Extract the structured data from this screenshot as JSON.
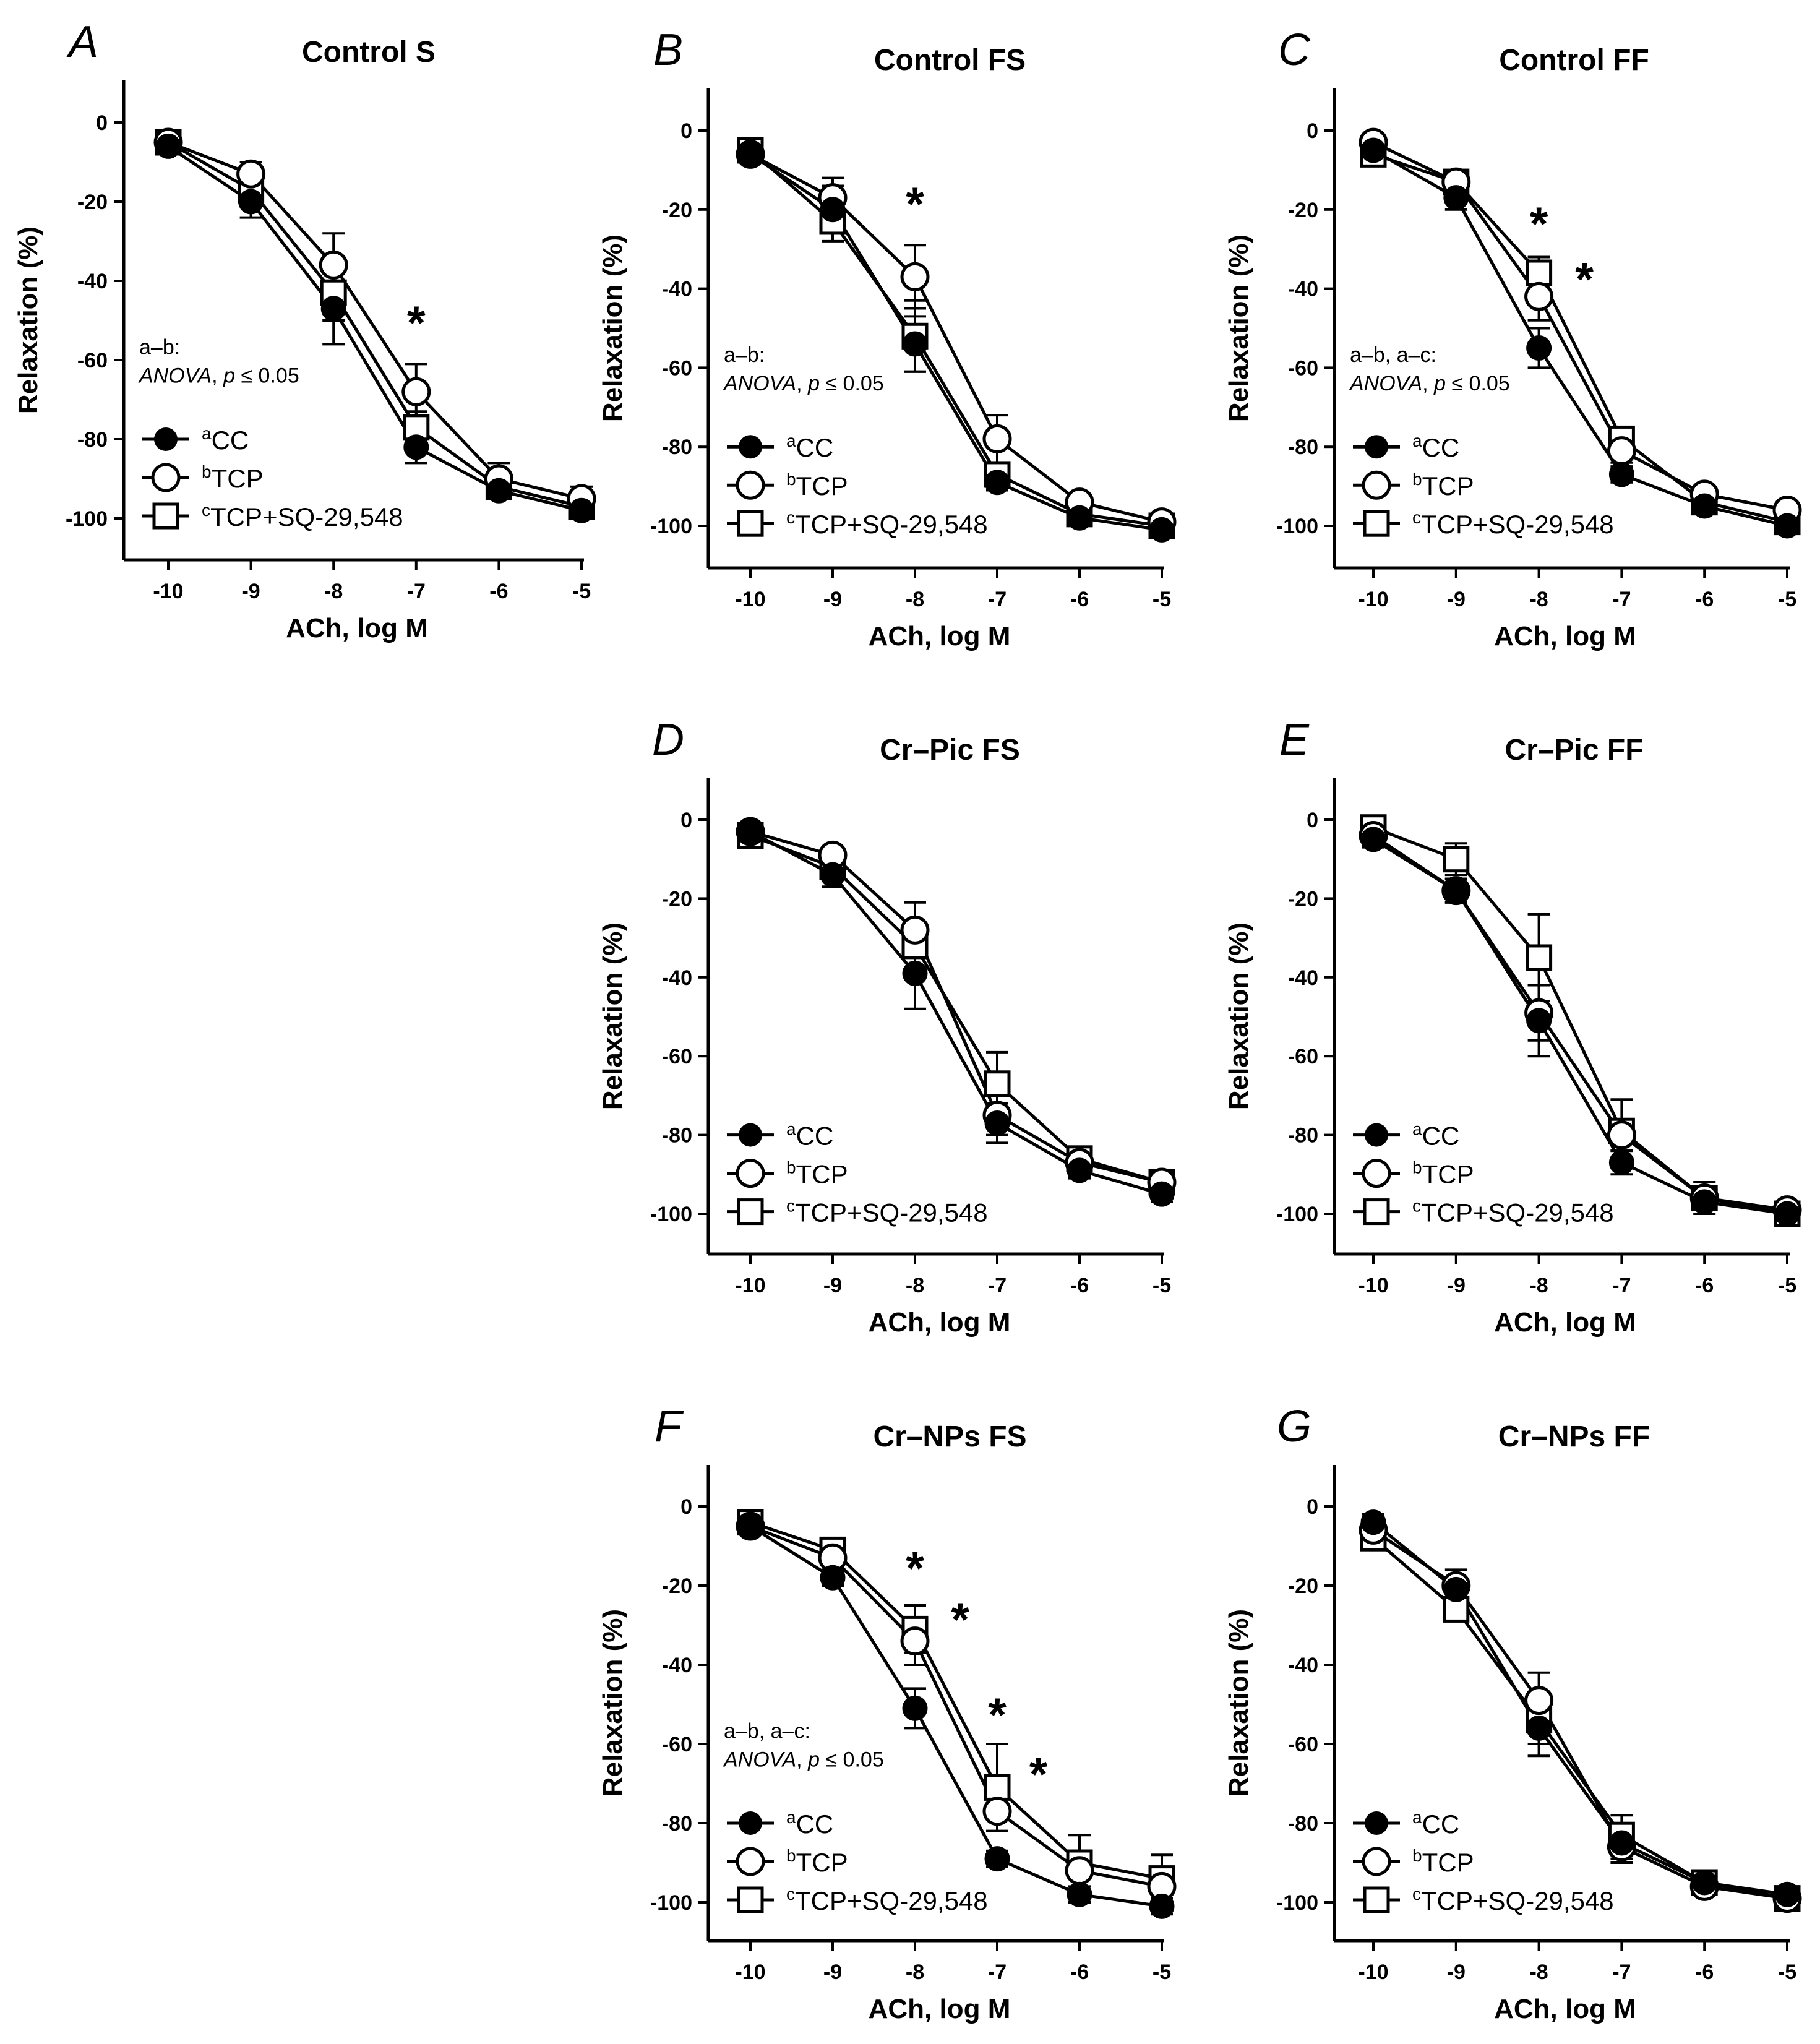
{
  "figure": {
    "common": {
      "xlabel": "ACh, log M",
      "ylabel": "Relaxation (%)",
      "x_ticks": [
        -10,
        -9,
        -8,
        -7,
        -6,
        -5
      ],
      "y_ticks": [
        0,
        -20,
        -40,
        -60,
        -80,
        -100
      ],
      "series_names": [
        "ᵃCC",
        "ᵇTCP",
        "ᶜTCP+SQ-29,548"
      ],
      "legend": [
        {
          "sup": "a",
          "label": "CC",
          "marker": "filled-circle"
        },
        {
          "sup": "b",
          "label": "TCP",
          "marker": "open-circle"
        },
        {
          "sup": "c",
          "label": "TCP+SQ-29,548",
          "marker": "open-square"
        }
      ]
    }
  },
  "chart_data": [
    {
      "type": "line",
      "panel": "A",
      "title": "Control S",
      "xlabel": "ACh, log M",
      "ylabel": "Relaxation (%)",
      "x": [
        -10,
        -9,
        -8,
        -7,
        -6,
        -5
      ],
      "xlim": [
        -10.5,
        -4.97
      ],
      "ylim": [
        -110,
        10
      ],
      "series": [
        {
          "name": "ᵃCC",
          "values": [
            -6,
            -20,
            -47,
            -82,
            -93,
            -98
          ],
          "errors": [
            2,
            4,
            9,
            4,
            2,
            2
          ]
        },
        {
          "name": "ᵇTCP",
          "values": [
            -5,
            -13,
            -36,
            -68,
            -90,
            -95
          ],
          "errors": [
            2,
            3,
            8,
            7,
            4,
            3
          ]
        },
        {
          "name": "ᶜTCP+SQ-29,548",
          "values": [
            -5,
            -17,
            -43,
            -77,
            -92,
            -97
          ],
          "errors": [
            2,
            3,
            7,
            4,
            2,
            2
          ]
        }
      ],
      "annotation_lines": [
        "a–b:",
        "ANOVA, p ≤ 0.05"
      ],
      "significance": [
        {
          "x": -7,
          "y": -50,
          "label": "*"
        }
      ]
    },
    {
      "type": "line",
      "panel": "B",
      "title": "Control FS",
      "xlabel": "ACh, log M",
      "ylabel": "Relaxation (%)",
      "x": [
        -10,
        -9,
        -8,
        -7,
        -6,
        -5
      ],
      "xlim": [
        -10.5,
        -4.97
      ],
      "ylim": [
        -110,
        10
      ],
      "series": [
        {
          "name": "ᵃCC",
          "values": [
            -6,
            -20,
            -54,
            -89,
            -98,
            -101
          ],
          "errors": [
            2,
            6,
            7,
            2,
            2,
            2
          ]
        },
        {
          "name": "ᵇTCP",
          "values": [
            -6,
            -17,
            -37,
            -78,
            -94,
            -99
          ],
          "errors": [
            2,
            5,
            8,
            6,
            2,
            2
          ]
        },
        {
          "name": "ᶜTCP+SQ-29,548",
          "values": [
            -5,
            -23,
            -52,
            -87,
            -97,
            -100
          ],
          "errors": [
            2,
            5,
            9,
            3,
            2,
            2
          ]
        }
      ],
      "annotation_lines": [
        "a–b:",
        "ANOVA, p ≤ 0.05"
      ],
      "significance": [
        {
          "x": -8,
          "y": -18,
          "label": "*"
        }
      ]
    },
    {
      "type": "line",
      "panel": "C",
      "title": "Control FF",
      "xlabel": "ACh, log M",
      "ylabel": "Relaxation (%)",
      "x": [
        -10,
        -9,
        -8,
        -7,
        -6,
        -5
      ],
      "xlim": [
        -10.5,
        -4.97
      ],
      "ylim": [
        -110,
        10
      ],
      "series": [
        {
          "name": "ᵃCC",
          "values": [
            -5,
            -17,
            -55,
            -87,
            -95,
            -100
          ],
          "errors": [
            2,
            3,
            5,
            2,
            2,
            1
          ]
        },
        {
          "name": "ᵇTCP",
          "values": [
            -3,
            -13,
            -42,
            -81,
            -92,
            -96
          ],
          "errors": [
            2,
            2,
            6,
            3,
            2,
            2
          ]
        },
        {
          "name": "ᶜTCP+SQ-29,548",
          "values": [
            -6,
            -13,
            -36,
            -78,
            -94,
            -99
          ],
          "errors": [
            2,
            2,
            4,
            3,
            2,
            2
          ]
        }
      ],
      "annotation_lines": [
        "a–b, a–c:",
        "ANOVA, p ≤ 0.05"
      ],
      "significance": [
        {
          "x": -8,
          "y": -23,
          "label": "*"
        },
        {
          "x": -7.45,
          "y": -37,
          "label": "*"
        }
      ]
    },
    {
      "type": "line",
      "panel": "D",
      "title": "Cr–Pic FS",
      "xlabel": "ACh, log M",
      "ylabel": "Relaxation (%)",
      "x": [
        -10,
        -9,
        -8,
        -7,
        -6,
        -5
      ],
      "xlim": [
        -10.5,
        -4.97
      ],
      "ylim": [
        -110,
        10
      ],
      "series": [
        {
          "name": "ᵃCC",
          "values": [
            -3,
            -14,
            -39,
            -77,
            -89,
            -95
          ],
          "errors": [
            2,
            3,
            9,
            5,
            2,
            2
          ]
        },
        {
          "name": "ᵇTCP",
          "values": [
            -3,
            -9,
            -28,
            -75,
            -87,
            -92
          ],
          "errors": [
            2,
            2,
            7,
            5,
            2,
            2
          ]
        },
        {
          "name": "ᶜTCP+SQ-29,548",
          "values": [
            -4,
            -12,
            -32,
            -67,
            -86,
            -92
          ],
          "errors": [
            2,
            2,
            6,
            8,
            2,
            2
          ]
        }
      ],
      "annotation_lines": [],
      "significance": []
    },
    {
      "type": "line",
      "panel": "E",
      "title": "Cr–Pic FF",
      "xlabel": "ACh, log M",
      "ylabel": "Relaxation (%)",
      "x": [
        -10,
        -9,
        -8,
        -7,
        -6,
        -5
      ],
      "xlim": [
        -10.5,
        -4.97
      ],
      "ylim": [
        -110,
        10
      ],
      "series": [
        {
          "name": "ᵃCC",
          "values": [
            -5,
            -18,
            -51,
            -87,
            -97,
            -100
          ],
          "errors": [
            2,
            3,
            9,
            3,
            2,
            1
          ]
        },
        {
          "name": "ᵇTCP",
          "values": [
            -4,
            -18,
            -49,
            -80,
            -96,
            -99
          ],
          "errors": [
            2,
            3,
            7,
            4,
            2,
            1
          ]
        },
        {
          "name": "ᶜTCP+SQ-29,548",
          "values": [
            -2,
            -10,
            -35,
            -79,
            -96,
            -100
          ],
          "errors": [
            2,
            4,
            11,
            8,
            4,
            1
          ]
        }
      ],
      "annotation_lines": [],
      "significance": []
    },
    {
      "type": "line",
      "panel": "F",
      "title": "Cr–NPs FS",
      "xlabel": "ACh, log M",
      "ylabel": "Relaxation (%)",
      "x": [
        -10,
        -9,
        -8,
        -7,
        -6,
        -5
      ],
      "xlim": [
        -10.5,
        -4.97
      ],
      "ylim": [
        -110,
        10
      ],
      "series": [
        {
          "name": "ᵃCC",
          "values": [
            -5,
            -18,
            -51,
            -89,
            -98,
            -101
          ],
          "errors": [
            2,
            2,
            5,
            2,
            2,
            2
          ]
        },
        {
          "name": "ᵇTCP",
          "values": [
            -5,
            -13,
            -34,
            -77,
            -92,
            -96
          ],
          "errors": [
            2,
            3,
            6,
            5,
            5,
            4
          ]
        },
        {
          "name": "ᶜTCP+SQ-29,548",
          "values": [
            -4,
            -11,
            -31,
            -71,
            -90,
            -94
          ],
          "errors": [
            2,
            3,
            6,
            11,
            7,
            6
          ]
        }
      ],
      "annotation_lines": [
        "a–b, a–c:",
        "ANOVA, p ≤ 0.05"
      ],
      "significance": [
        {
          "x": -8,
          "y": -15,
          "label": "*"
        },
        {
          "x": -7.45,
          "y": -28,
          "label": "*"
        },
        {
          "x": -7,
          "y": -52,
          "label": "*"
        },
        {
          "x": -6.5,
          "y": -67,
          "label": "*"
        }
      ]
    },
    {
      "type": "line",
      "panel": "G",
      "title": "Cr–NPs FF",
      "xlabel": "ACh, log M",
      "ylabel": "Relaxation (%)",
      "x": [
        -10,
        -9,
        -8,
        -7,
        -6,
        -5
      ],
      "xlim": [
        -10.5,
        -4.97
      ],
      "ylim": [
        -110,
        10
      ],
      "series": [
        {
          "name": "ᵃCC",
          "values": [
            -4,
            -21,
            -56,
            -85,
            -95,
            -98
          ],
          "errors": [
            2,
            3,
            7,
            4,
            2,
            1
          ]
        },
        {
          "name": "ᵇTCP",
          "values": [
            -6,
            -20,
            -49,
            -86,
            -96,
            -99
          ],
          "errors": [
            2,
            4,
            7,
            4,
            2,
            1
          ]
        },
        {
          "name": "ᶜTCP+SQ-29,548",
          "values": [
            -8,
            -26,
            -54,
            -83,
            -95,
            -99
          ],
          "errors": [
            2,
            3,
            6,
            5,
            2,
            1
          ]
        }
      ],
      "annotation_lines": [],
      "significance": []
    }
  ]
}
